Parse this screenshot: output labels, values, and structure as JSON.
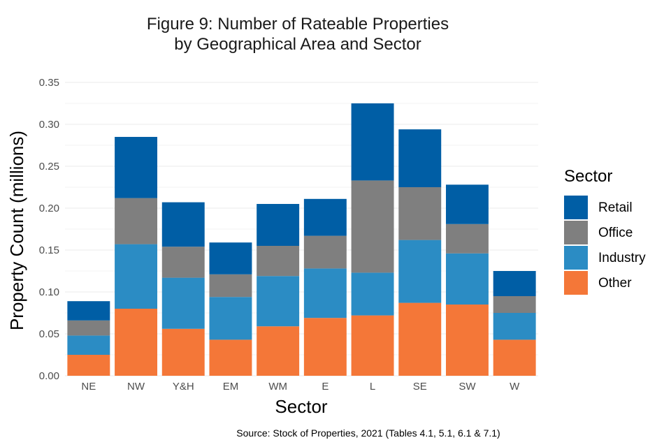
{
  "chart_data": {
    "type": "bar",
    "stacked": true,
    "title_lines": [
      "Figure 9: Number of Rateable Properties",
      "by Geographical Area and Sector"
    ],
    "xlabel": "Sector",
    "ylabel": "Property Count (millions)",
    "caption": "Source: Stock of Properties, 2021 (Tables 4.1, 5.1, 6.1 & 7.1)",
    "categories": [
      "NE",
      "NW",
      "Y&H",
      "EM",
      "WM",
      "E",
      "L",
      "SE",
      "SW",
      "W"
    ],
    "ylim": [
      0,
      0.35
    ],
    "y_ticks": [
      "0.00",
      "0.05",
      "0.10",
      "0.15",
      "0.20",
      "0.25",
      "0.30",
      "0.35"
    ],
    "grid": true,
    "legend": {
      "title": "Sector",
      "position": "right",
      "items": [
        {
          "label": "Retail",
          "color": "#005ea5"
        },
        {
          "label": "Office",
          "color": "#7f7f7f"
        },
        {
          "label": "Industry",
          "color": "#2b8cc4"
        },
        {
          "label": "Other",
          "color": "#f47738"
        }
      ]
    },
    "series": [
      {
        "name": "Other",
        "color": "#f47738",
        "values": [
          0.025,
          0.08,
          0.056,
          0.043,
          0.059,
          0.069,
          0.072,
          0.087,
          0.085,
          0.043
        ]
      },
      {
        "name": "Industry",
        "color": "#2b8cc4",
        "values": [
          0.023,
          0.077,
          0.061,
          0.051,
          0.06,
          0.059,
          0.051,
          0.075,
          0.061,
          0.032
        ]
      },
      {
        "name": "Office",
        "color": "#7f7f7f",
        "values": [
          0.018,
          0.055,
          0.037,
          0.027,
          0.036,
          0.039,
          0.11,
          0.063,
          0.035,
          0.02
        ]
      },
      {
        "name": "Retail",
        "color": "#005ea5",
        "values": [
          0.023,
          0.073,
          0.053,
          0.038,
          0.05,
          0.044,
          0.092,
          0.069,
          0.047,
          0.03
        ]
      }
    ]
  }
}
